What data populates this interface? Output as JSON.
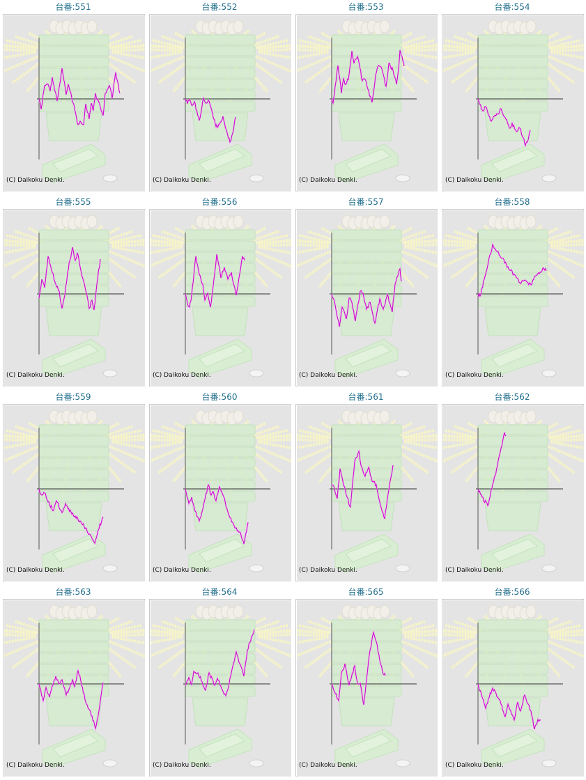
{
  "colors": {
    "title": "#1f6d8c",
    "line": "#cc00cc",
    "axis": "#555555",
    "background": "#e4e4e4"
  },
  "copyright": "(C) Daikoku Denki.",
  "chart_data": {
    "type": "line",
    "description_units": "slump graph: x = progress, y = balance relative to zero line",
    "items": [
      {
        "title": "台番:551",
        "points": [
          [
            0,
            0
          ],
          [
            3,
            -15
          ],
          [
            8,
            19
          ],
          [
            13,
            21
          ],
          [
            16,
            11
          ],
          [
            19,
            31
          ],
          [
            26,
            -3
          ],
          [
            33,
            44
          ],
          [
            39,
            6
          ],
          [
            42,
            21
          ],
          [
            49,
            -6
          ],
          [
            56,
            -37
          ],
          [
            59,
            -32
          ],
          [
            64,
            -37
          ],
          [
            67,
            -7
          ],
          [
            72,
            -29
          ],
          [
            75,
            -6
          ],
          [
            78,
            -16
          ],
          [
            81,
            8
          ],
          [
            88,
            -12
          ],
          [
            92,
            -24
          ],
          [
            95,
            8
          ],
          [
            101,
            19
          ],
          [
            105,
            1
          ],
          [
            110,
            38
          ],
          [
            116,
            8
          ]
        ]
      },
      {
        "title": "台番:552",
        "points": [
          [
            0,
            0
          ],
          [
            3,
            -7
          ],
          [
            6,
            -1
          ],
          [
            9,
            -9
          ],
          [
            13,
            -4
          ],
          [
            20,
            -31
          ],
          [
            26,
            1
          ],
          [
            29,
            -6
          ],
          [
            33,
            -2
          ],
          [
            38,
            -17
          ],
          [
            43,
            -36
          ],
          [
            46,
            -41
          ],
          [
            49,
            -36
          ],
          [
            54,
            -25
          ],
          [
            57,
            -39
          ],
          [
            64,
            -62
          ],
          [
            68,
            -49
          ],
          [
            72,
            -26
          ]
        ]
      },
      {
        "title": "台番:553",
        "points": [
          [
            0,
            0
          ],
          [
            2,
            -6
          ],
          [
            5,
            18
          ],
          [
            9,
            48
          ],
          [
            14,
            8
          ],
          [
            17,
            29
          ],
          [
            19,
            21
          ],
          [
            24,
            28
          ],
          [
            29,
            69
          ],
          [
            32,
            51
          ],
          [
            37,
            61
          ],
          [
            44,
            26
          ],
          [
            48,
            28
          ],
          [
            52,
            14
          ],
          [
            58,
            -5
          ],
          [
            63,
            34
          ],
          [
            67,
            48
          ],
          [
            72,
            43
          ],
          [
            78,
            18
          ],
          [
            82,
            51
          ],
          [
            88,
            41
          ],
          [
            93,
            21
          ],
          [
            96,
            44
          ],
          [
            98,
            70
          ],
          [
            101,
            61
          ],
          [
            104,
            47
          ]
        ]
      },
      {
        "title": "台番:554",
        "points": [
          [
            0,
            0
          ],
          [
            6,
            -16
          ],
          [
            12,
            -12
          ],
          [
            19,
            -32
          ],
          [
            22,
            -26
          ],
          [
            28,
            -22
          ],
          [
            33,
            -14
          ],
          [
            40,
            -29
          ],
          [
            45,
            -42
          ],
          [
            49,
            -35
          ],
          [
            55,
            -47
          ],
          [
            60,
            -42
          ],
          [
            65,
            -56
          ],
          [
            68,
            -67
          ],
          [
            71,
            -62
          ],
          [
            75,
            -45
          ]
        ]
      },
      {
        "title": "台番:555",
        "points": [
          [
            0,
            -6
          ],
          [
            4,
            21
          ],
          [
            8,
            9
          ],
          [
            13,
            54
          ],
          [
            19,
            31
          ],
          [
            24,
            14
          ],
          [
            29,
            4
          ],
          [
            33,
            -21
          ],
          [
            37,
            -2
          ],
          [
            41,
            31
          ],
          [
            48,
            67
          ],
          [
            52,
            48
          ],
          [
            55,
            59
          ],
          [
            60,
            34
          ],
          [
            64,
            18
          ],
          [
            68,
            1
          ],
          [
            72,
            -21
          ],
          [
            76,
            -9
          ],
          [
            79,
            -23
          ],
          [
            83,
            14
          ],
          [
            88,
            50
          ]
        ]
      },
      {
        "title": "台番:556",
        "points": [
          [
            0,
            0
          ],
          [
            3,
            -14
          ],
          [
            6,
            -19
          ],
          [
            9,
            -2
          ],
          [
            15,
            54
          ],
          [
            20,
            28
          ],
          [
            25,
            14
          ],
          [
            28,
            -9
          ],
          [
            32,
            1
          ],
          [
            36,
            -19
          ],
          [
            41,
            21
          ],
          [
            45,
            57
          ],
          [
            49,
            38
          ],
          [
            51,
            23
          ],
          [
            56,
            38
          ],
          [
            61,
            21
          ],
          [
            66,
            31
          ],
          [
            73,
            -2
          ],
          [
            78,
            29
          ],
          [
            82,
            54
          ],
          [
            85,
            48
          ]
        ]
      },
      {
        "title": "台番:557",
        "points": [
          [
            0,
            0
          ],
          [
            5,
            -16
          ],
          [
            11,
            -47
          ],
          [
            15,
            -19
          ],
          [
            21,
            -36
          ],
          [
            25,
            -6
          ],
          [
            29,
            -12
          ],
          [
            34,
            -39
          ],
          [
            41,
            4
          ],
          [
            45,
            1
          ],
          [
            50,
            -22
          ],
          [
            55,
            -12
          ],
          [
            62,
            -42
          ],
          [
            69,
            -7
          ],
          [
            74,
            -22
          ],
          [
            80,
            -1
          ],
          [
            87,
            -26
          ],
          [
            91,
            14
          ],
          [
            98,
            36
          ],
          [
            100,
            18
          ]
        ]
      },
      {
        "title": "台番:558",
        "points": [
          [
            0,
            0
          ],
          [
            3,
            -3
          ],
          [
            9,
            21
          ],
          [
            14,
            41
          ],
          [
            21,
            71
          ],
          [
            27,
            61
          ],
          [
            36,
            51
          ],
          [
            44,
            36
          ],
          [
            54,
            26
          ],
          [
            60,
            16
          ],
          [
            67,
            20
          ],
          [
            76,
            13
          ],
          [
            81,
            25
          ],
          [
            89,
            31
          ],
          [
            93,
            37
          ],
          [
            98,
            33
          ]
        ]
      },
      {
        "title": "台番:559",
        "points": [
          [
            0,
            0
          ],
          [
            4,
            -9
          ],
          [
            8,
            -6
          ],
          [
            13,
            -19
          ],
          [
            21,
            -31
          ],
          [
            25,
            -17
          ],
          [
            33,
            -34
          ],
          [
            38,
            -21
          ],
          [
            47,
            -36
          ],
          [
            52,
            -39
          ],
          [
            59,
            -46
          ],
          [
            67,
            -56
          ],
          [
            74,
            -67
          ],
          [
            80,
            -78
          ],
          [
            85,
            -59
          ],
          [
            92,
            -40
          ]
        ]
      },
      {
        "title": "台番:560",
        "points": [
          [
            0,
            0
          ],
          [
            5,
            -21
          ],
          [
            9,
            -12
          ],
          [
            14,
            -32
          ],
          [
            20,
            -46
          ],
          [
            26,
            -24
          ],
          [
            33,
            6
          ],
          [
            37,
            -9
          ],
          [
            40,
            -4
          ],
          [
            44,
            -17
          ],
          [
            49,
            3
          ],
          [
            54,
            -9
          ],
          [
            63,
            -39
          ],
          [
            71,
            -56
          ],
          [
            78,
            -62
          ],
          [
            84,
            -79
          ],
          [
            90,
            -48
          ]
        ]
      },
      {
        "title": "台番:561",
        "points": [
          [
            0,
            6
          ],
          [
            4,
            1
          ],
          [
            8,
            -14
          ],
          [
            12,
            29
          ],
          [
            16,
            11
          ],
          [
            21,
            -9
          ],
          [
            27,
            -26
          ],
          [
            33,
            39
          ],
          [
            39,
            54
          ],
          [
            42,
            34
          ],
          [
            48,
            18
          ],
          [
            53,
            31
          ],
          [
            58,
            11
          ],
          [
            64,
            6
          ],
          [
            69,
            -19
          ],
          [
            76,
            -43
          ],
          [
            82,
            -2
          ],
          [
            88,
            34
          ]
        ]
      },
      {
        "title": "台番:562",
        "points": [
          [
            0,
            0
          ],
          [
            6,
            -12
          ],
          [
            14,
            -24
          ],
          [
            20,
            1
          ],
          [
            28,
            34
          ],
          [
            33,
            58
          ],
          [
            38,
            81
          ],
          [
            40,
            76
          ]
        ]
      },
      {
        "title": "台番:563",
        "points": [
          [
            0,
            0
          ],
          [
            6,
            -24
          ],
          [
            10,
            -5
          ],
          [
            15,
            -19
          ],
          [
            18,
            -7
          ],
          [
            24,
            11
          ],
          [
            28,
            1
          ],
          [
            33,
            6
          ],
          [
            39,
            -16
          ],
          [
            44,
            -6
          ],
          [
            48,
            6
          ],
          [
            51,
            -4
          ],
          [
            56,
            19
          ],
          [
            60,
            4
          ],
          [
            67,
            -26
          ],
          [
            76,
            -46
          ],
          [
            81,
            -64
          ],
          [
            87,
            -32
          ],
          [
            92,
            2
          ]
        ]
      },
      {
        "title": "台番:564",
        "points": [
          [
            0,
            -2
          ],
          [
            5,
            9
          ],
          [
            9,
            -1
          ],
          [
            12,
            18
          ],
          [
            18,
            16
          ],
          [
            24,
            3
          ],
          [
            29,
            -9
          ],
          [
            34,
            16
          ],
          [
            42,
            -2
          ],
          [
            46,
            8
          ],
          [
            52,
            -7
          ],
          [
            58,
            -17
          ],
          [
            63,
            1
          ],
          [
            69,
            29
          ],
          [
            73,
            46
          ],
          [
            78,
            29
          ],
          [
            84,
            11
          ],
          [
            89,
            48
          ],
          [
            95,
            68
          ],
          [
            99,
            78
          ]
        ]
      },
      {
        "title": "台番:565",
        "points": [
          [
            0,
            0
          ],
          [
            3,
            -9
          ],
          [
            10,
            -24
          ],
          [
            14,
            16
          ],
          [
            19,
            29
          ],
          [
            25,
            -2
          ],
          [
            33,
            26
          ],
          [
            37,
            1
          ],
          [
            41,
            1
          ],
          [
            46,
            -30
          ],
          [
            53,
            34
          ],
          [
            60,
            74
          ],
          [
            64,
            61
          ],
          [
            69,
            34
          ],
          [
            74,
            14
          ],
          [
            77,
            12
          ]
        ]
      },
      {
        "title": "台番:566",
        "points": [
          [
            0,
            0
          ],
          [
            6,
            -19
          ],
          [
            11,
            -35
          ],
          [
            15,
            -21
          ],
          [
            21,
            -6
          ],
          [
            26,
            -14
          ],
          [
            33,
            -29
          ],
          [
            39,
            -47
          ],
          [
            43,
            -29
          ],
          [
            47,
            -39
          ],
          [
            52,
            -52
          ],
          [
            57,
            -26
          ],
          [
            61,
            -39
          ],
          [
            67,
            -16
          ],
          [
            72,
            -29
          ],
          [
            76,
            -39
          ],
          [
            81,
            -65
          ],
          [
            86,
            -51
          ],
          [
            90,
            -52
          ]
        ]
      }
    ]
  }
}
